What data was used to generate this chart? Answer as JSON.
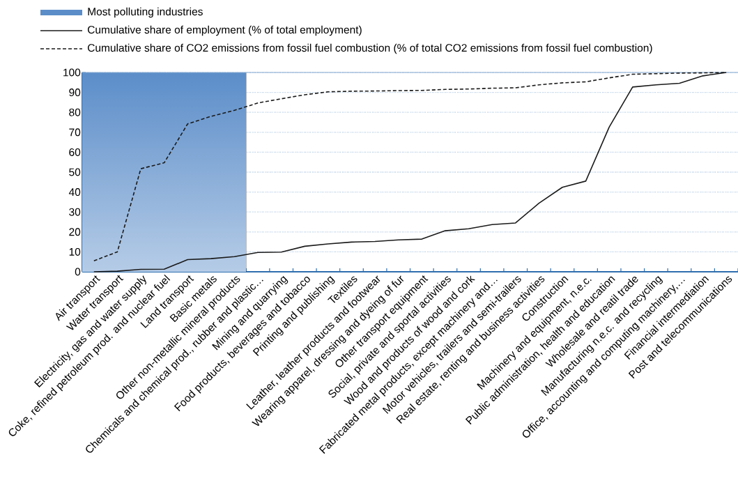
{
  "chart_data": {
    "type": "line",
    "categories": [
      "Air transport",
      "Water transport",
      "Electricity, gas and water supply",
      "Coke, refined petroleum prod. and nuclear fuel",
      "Land transport",
      "Basic metals",
      "Other non-metallic mineral products",
      "Chemicals and chemical prod., rubber and plastic…",
      "Mining and quarrying",
      "Food products, beverages and tobacco",
      "Printing and publishing",
      "Textiles",
      "Leather, leather products and footwear",
      "Wearing apparel, dressing and dyeing of fur",
      "Other transport equipment",
      "Social, private and sportal activities",
      "Wood and products of wood and cork",
      "Fabricated metal products, except machinery and…",
      "Motor vehicles, trailers and semi-trailers",
      "Real estate, renting and business activities",
      "Construction",
      "Machinery and equipment, n.e.c.",
      "Public administration, health and education",
      "Wholesale and reatil trade",
      "Manufacturing n.e.c. and recycling",
      "Office, accounting and computing machinery,…",
      "Financial intermediation",
      "Post and telecommunications"
    ],
    "series": [
      {
        "name": "Cumulative share of employment (% of total employment)",
        "color": "#1a1a1a",
        "line_style": "solid",
        "values": [
          0,
          0.3,
          1.2,
          1.3,
          6.1,
          6.6,
          7.6,
          9.7,
          9.9,
          12.8,
          14,
          14.9,
          15.2,
          16,
          16.4,
          20.6,
          21.6,
          23.7,
          24.5,
          34.4,
          42.4,
          45.5,
          72.6,
          92.7,
          93.8,
          94.6,
          98.3,
          100
        ]
      },
      {
        "name": "Cumulative share of CO2 emissions from fossil fuel combustion (% of total CO2 emissions from fossil fuel combustion)",
        "color": "#1a1a1a",
        "line_style": "dashed",
        "values": [
          5.5,
          10,
          51.7,
          54.7,
          74.2,
          78,
          81,
          84.7,
          86.8,
          88.8,
          90.3,
          90.6,
          90.7,
          90.9,
          91,
          91.5,
          91.7,
          92.1,
          92.3,
          93.8,
          94.8,
          95.3,
          97.3,
          99.1,
          99.4,
          99.7,
          99.8,
          100
        ]
      }
    ],
    "bands": [
      {
        "axis": "x",
        "from": "Air transport",
        "to": "Other non-metallic mineral products",
        "label": "Most polluting industries",
        "color": "#5b8dc9"
      }
    ],
    "ylim": [
      0,
      100
    ],
    "yticks": [
      0,
      10,
      20,
      30,
      40,
      50,
      60,
      70,
      80,
      90,
      100
    ],
    "grid": "y",
    "legend": "top left",
    "marker": "none"
  }
}
